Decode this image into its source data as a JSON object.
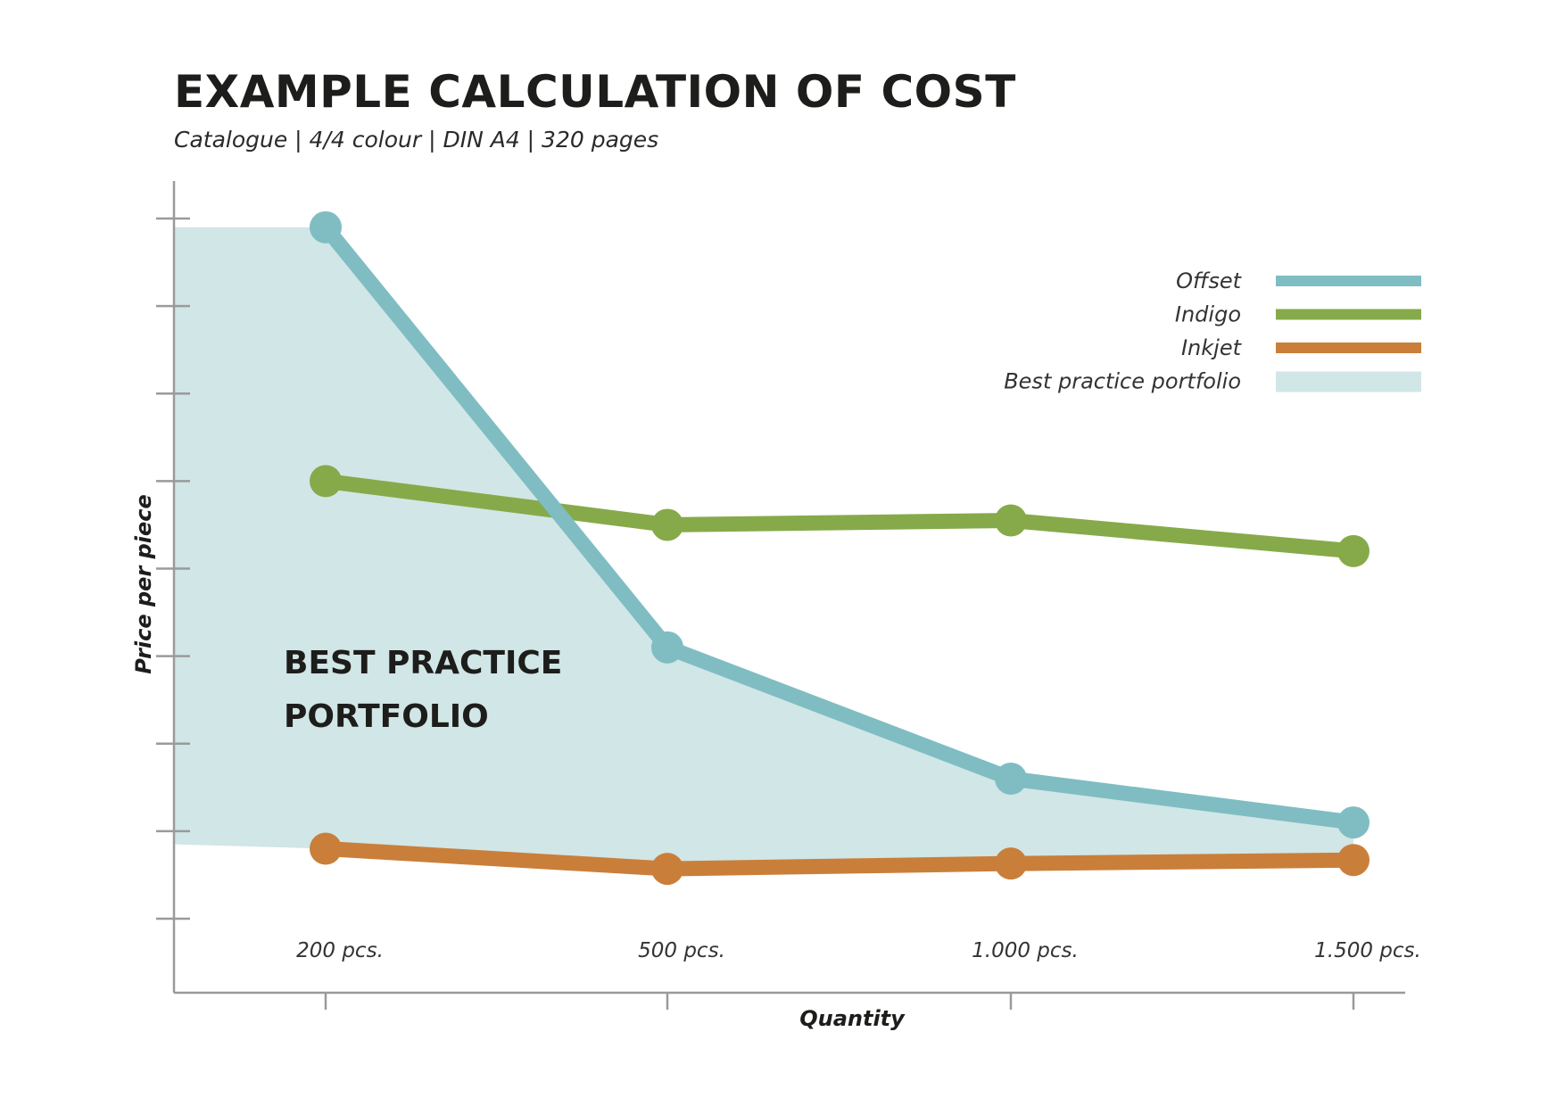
{
  "chart_data": {
    "type": "line",
    "title": "EXAMPLE CALCULATION OF COST",
    "subtitle": "Catalogue  |  4/4 colour  |  DIN A4  |  320 pages",
    "xlabel": "Quantity",
    "ylabel": "Price per piece",
    "categories": [
      "200 pcs.",
      "500 pcs.",
      "1.000 pcs.",
      "1.500 pcs."
    ],
    "ylim": [
      0,
      8
    ],
    "y_tick_count": 9,
    "y_tick_labels_shown": false,
    "grid": false,
    "legend_position": "top-right",
    "series": [
      {
        "name": "Offset",
        "values": [
          7.9,
          3.1,
          1.6,
          1.1
        ],
        "color": "#7fbdc3"
      },
      {
        "name": "Indigo",
        "values": [
          5.0,
          4.5,
          4.55,
          4.2
        ],
        "color": "#86aa4a"
      },
      {
        "name": "Inkjet",
        "values": [
          0.8,
          0.57,
          0.63,
          0.67
        ],
        "color": "#c97f3a"
      }
    ],
    "area": {
      "name": "Best practice portfolio",
      "label": [
        "BEST PRACTICE",
        "PORTFOLIO"
      ],
      "color": "#d1e6e6",
      "upper_at_axis": 7.9,
      "lower_at_axis": 0.85
    }
  }
}
